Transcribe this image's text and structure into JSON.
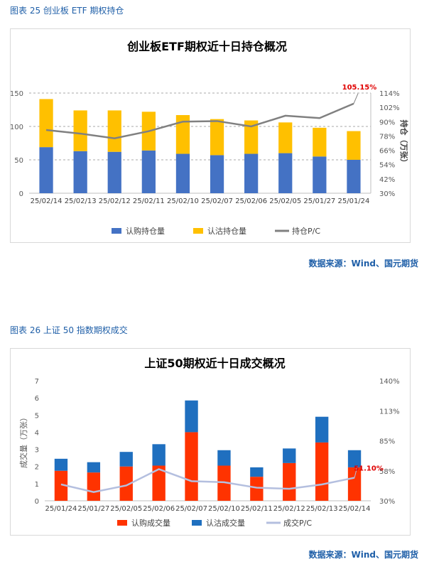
{
  "figure1": {
    "caption": "图表 25 创业板 ETF 期权持仓",
    "source": "数据来源：Wind、国元期货"
  },
  "figure2": {
    "caption": "图表 26 上证 50 指数期权成交",
    "source": "数据来源：Wind、国元期货"
  },
  "colors": {
    "call": "#4472c4",
    "put_oi": "#ffc000",
    "pc_oi": "#808080",
    "call_vol": "#ff3300",
    "put_vol": "#1f6fbf",
    "pc_vol": "#b4bfdf",
    "highlight": "#e00000"
  },
  "chart_data": [
    {
      "type": "bar",
      "stacked": true,
      "title": "创业板ETF期权近十日持仓概况",
      "categories": [
        "25/02/14",
        "25/02/13",
        "25/02/12",
        "25/02/11",
        "25/02/10",
        "25/02/07",
        "25/02/06",
        "25/02/05",
        "25/01/27",
        "25/01/24"
      ],
      "series": [
        {
          "name": "认购持仓量",
          "kind": "bar",
          "axis": "left",
          "values": [
            69,
            63,
            62,
            64,
            59,
            57,
            59,
            60,
            55,
            50
          ]
        },
        {
          "name": "认沽持仓量",
          "kind": "bar",
          "axis": "left",
          "values": [
            72,
            61,
            62,
            58,
            58,
            54,
            50,
            46,
            43,
            43
          ]
        },
        {
          "name": "持仓P/C",
          "kind": "line",
          "axis": "right",
          "values": [
            0.83,
            0.8,
            0.76,
            0.82,
            0.9,
            0.905,
            0.86,
            0.95,
            0.93,
            1.0515
          ]
        }
      ],
      "ylabel": "",
      "y2label": "持仓（万张）",
      "ylim": [
        0,
        150
      ],
      "yticks": [
        0,
        50,
        100,
        150
      ],
      "y2ticks": [
        "30%",
        "42%",
        "54%",
        "66%",
        "78%",
        "90%",
        "102%",
        "114%"
      ],
      "y2lim": [
        0.3,
        1.14
      ],
      "annotation": "105.15%",
      "grid": "dashed horizontal",
      "legend": "bottom"
    },
    {
      "type": "bar",
      "stacked": true,
      "title": "上证50期权近十日成交概况",
      "categories": [
        "25/01/24",
        "25/01/27",
        "25/02/05",
        "25/02/06",
        "25/02/07",
        "25/02/10",
        "25/02/11",
        "25/02/12",
        "25/02/13",
        "25/02/14"
      ],
      "series": [
        {
          "name": "认购成交量",
          "kind": "bar",
          "axis": "left",
          "values": [
            1.75,
            1.65,
            2.0,
            2.05,
            4.0,
            2.05,
            1.4,
            2.2,
            3.4,
            1.95
          ]
        },
        {
          "name": "认沽成交量",
          "kind": "bar",
          "axis": "left",
          "values": [
            0.7,
            0.6,
            0.85,
            1.25,
            1.85,
            0.9,
            0.55,
            0.85,
            1.5,
            1.0
          ]
        },
        {
          "name": "成交P/C",
          "kind": "line",
          "axis": "right",
          "values": [
            0.45,
            0.38,
            0.44,
            0.59,
            0.48,
            0.47,
            0.42,
            0.41,
            0.45,
            0.511
          ]
        }
      ],
      "ylabel": "成交量（万张）",
      "ylim": [
        0,
        7
      ],
      "yticks": [
        0,
        1,
        2,
        3,
        4,
        5,
        6,
        7
      ],
      "y2ticks": [
        "30%",
        "58%",
        "85%",
        "113%",
        "140%"
      ],
      "y2lim": [
        0.3,
        1.4
      ],
      "annotation": "51.10%",
      "grid": "none",
      "legend": "bottom"
    }
  ]
}
